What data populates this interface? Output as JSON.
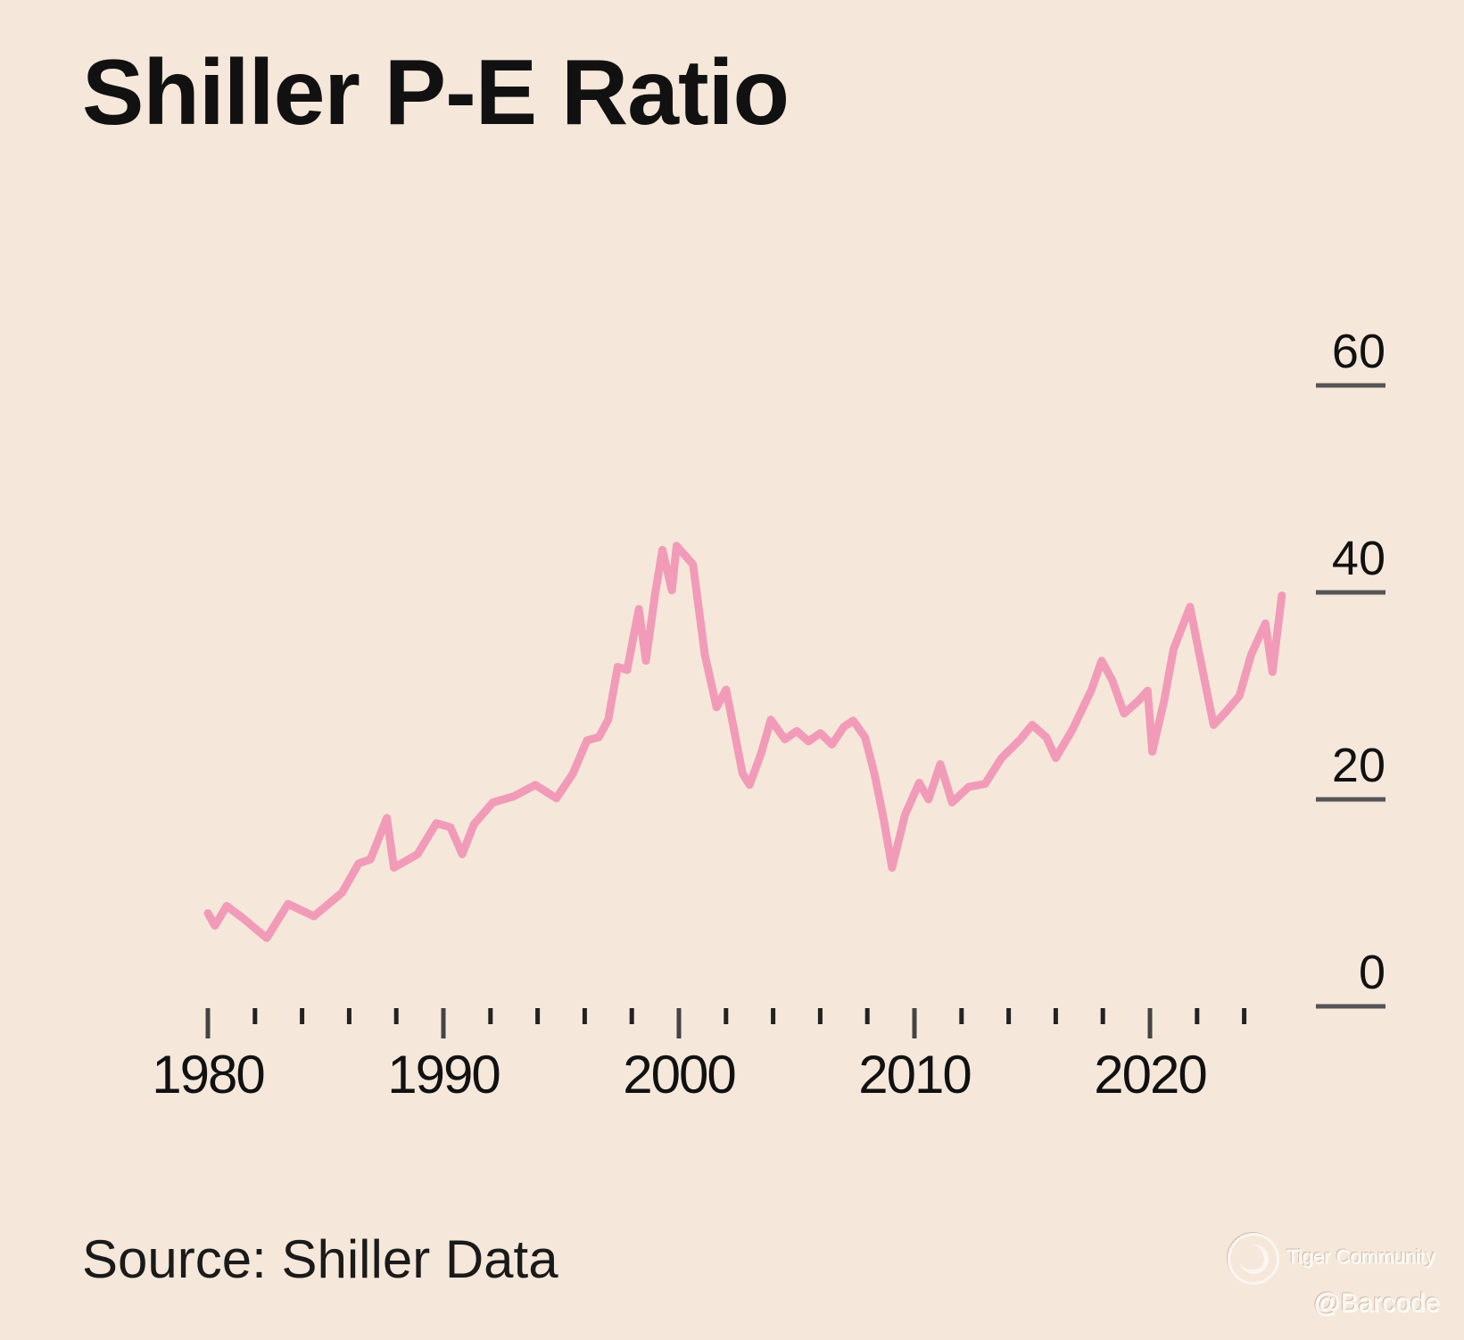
{
  "chart_data": {
    "type": "line",
    "title": "Shiller P-E Ratio",
    "source": "Source: Shiller Data",
    "xlabel": "",
    "ylabel": "",
    "xlim": [
      1980,
      2026
    ],
    "ylim": [
      0,
      60
    ],
    "y_axis_position": "right",
    "grid": false,
    "x_ticks_major": [
      1980,
      1990,
      2000,
      2010,
      2020
    ],
    "x_tick_labels": [
      "1980",
      "1990",
      "2000",
      "2010",
      "2020"
    ],
    "x_ticks_minor_step": 2,
    "x_ticks_minor_last": 2024,
    "y_ticks": [
      0,
      20,
      40,
      60
    ],
    "y_tick_labels": [
      "0",
      "20",
      "40",
      "60"
    ],
    "series": [
      {
        "name": "Shiller P-E Ratio",
        "color": "#f29bb9",
        "points": [
          [
            1980.0,
            9.0
          ],
          [
            1980.3,
            7.8
          ],
          [
            1980.8,
            9.7
          ],
          [
            1981.5,
            8.5
          ],
          [
            1982.5,
            6.6
          ],
          [
            1983.4,
            9.9
          ],
          [
            1984.5,
            8.7
          ],
          [
            1985.7,
            11.0
          ],
          [
            1986.4,
            13.8
          ],
          [
            1986.9,
            14.2
          ],
          [
            1987.6,
            18.2
          ],
          [
            1987.9,
            13.4
          ],
          [
            1988.9,
            14.7
          ],
          [
            1989.7,
            17.7
          ],
          [
            1990.3,
            17.3
          ],
          [
            1990.8,
            14.7
          ],
          [
            1991.3,
            17.6
          ],
          [
            1992.1,
            19.7
          ],
          [
            1993.0,
            20.3
          ],
          [
            1993.9,
            21.4
          ],
          [
            1994.8,
            20.1
          ],
          [
            1995.5,
            22.5
          ],
          [
            1996.1,
            25.7
          ],
          [
            1996.6,
            26.0
          ],
          [
            1997.0,
            27.7
          ],
          [
            1997.4,
            32.8
          ],
          [
            1997.8,
            32.5
          ],
          [
            1998.3,
            38.4
          ],
          [
            1998.6,
            33.4
          ],
          [
            1999.0,
            40.0
          ],
          [
            1999.3,
            44.1
          ],
          [
            1999.7,
            40.2
          ],
          [
            1999.9,
            44.5
          ],
          [
            2000.6,
            42.7
          ],
          [
            2001.1,
            34.0
          ],
          [
            2001.6,
            28.9
          ],
          [
            2002.0,
            30.6
          ],
          [
            2002.3,
            27.2
          ],
          [
            2002.7,
            22.5
          ],
          [
            2003.0,
            21.4
          ],
          [
            2003.5,
            24.5
          ],
          [
            2003.9,
            27.7
          ],
          [
            2004.5,
            25.8
          ],
          [
            2005.0,
            26.6
          ],
          [
            2005.5,
            25.6
          ],
          [
            2006.0,
            26.4
          ],
          [
            2006.5,
            25.3
          ],
          [
            2007.0,
            27.0
          ],
          [
            2007.4,
            27.6
          ],
          [
            2007.9,
            26.0
          ],
          [
            2008.3,
            22.5
          ],
          [
            2008.7,
            18.0
          ],
          [
            2009.05,
            13.4
          ],
          [
            2009.6,
            18.5
          ],
          [
            2010.2,
            21.6
          ],
          [
            2010.6,
            20.0
          ],
          [
            2011.1,
            23.4
          ],
          [
            2011.6,
            19.7
          ],
          [
            2012.3,
            21.2
          ],
          [
            2013.0,
            21.5
          ],
          [
            2013.7,
            24.0
          ],
          [
            2014.5,
            25.8
          ],
          [
            2015.0,
            27.2
          ],
          [
            2015.6,
            26.0
          ],
          [
            2016.0,
            24.0
          ],
          [
            2016.7,
            26.7
          ],
          [
            2017.5,
            30.5
          ],
          [
            2017.95,
            33.4
          ],
          [
            2018.4,
            31.5
          ],
          [
            2018.9,
            28.3
          ],
          [
            2019.5,
            29.5
          ],
          [
            2019.9,
            30.5
          ],
          [
            2020.1,
            24.6
          ],
          [
            2020.6,
            29.5
          ],
          [
            2021.0,
            34.5
          ],
          [
            2021.7,
            38.6
          ],
          [
            2022.1,
            34.0
          ],
          [
            2022.7,
            27.2
          ],
          [
            2023.2,
            28.4
          ],
          [
            2023.8,
            30.0
          ],
          [
            2024.3,
            34.0
          ],
          [
            2024.9,
            37.0
          ],
          [
            2025.2,
            32.3
          ],
          [
            2025.6,
            39.7
          ]
        ]
      }
    ]
  },
  "watermark": {
    "brand": "Tiger Community",
    "user": "@Barcode"
  }
}
